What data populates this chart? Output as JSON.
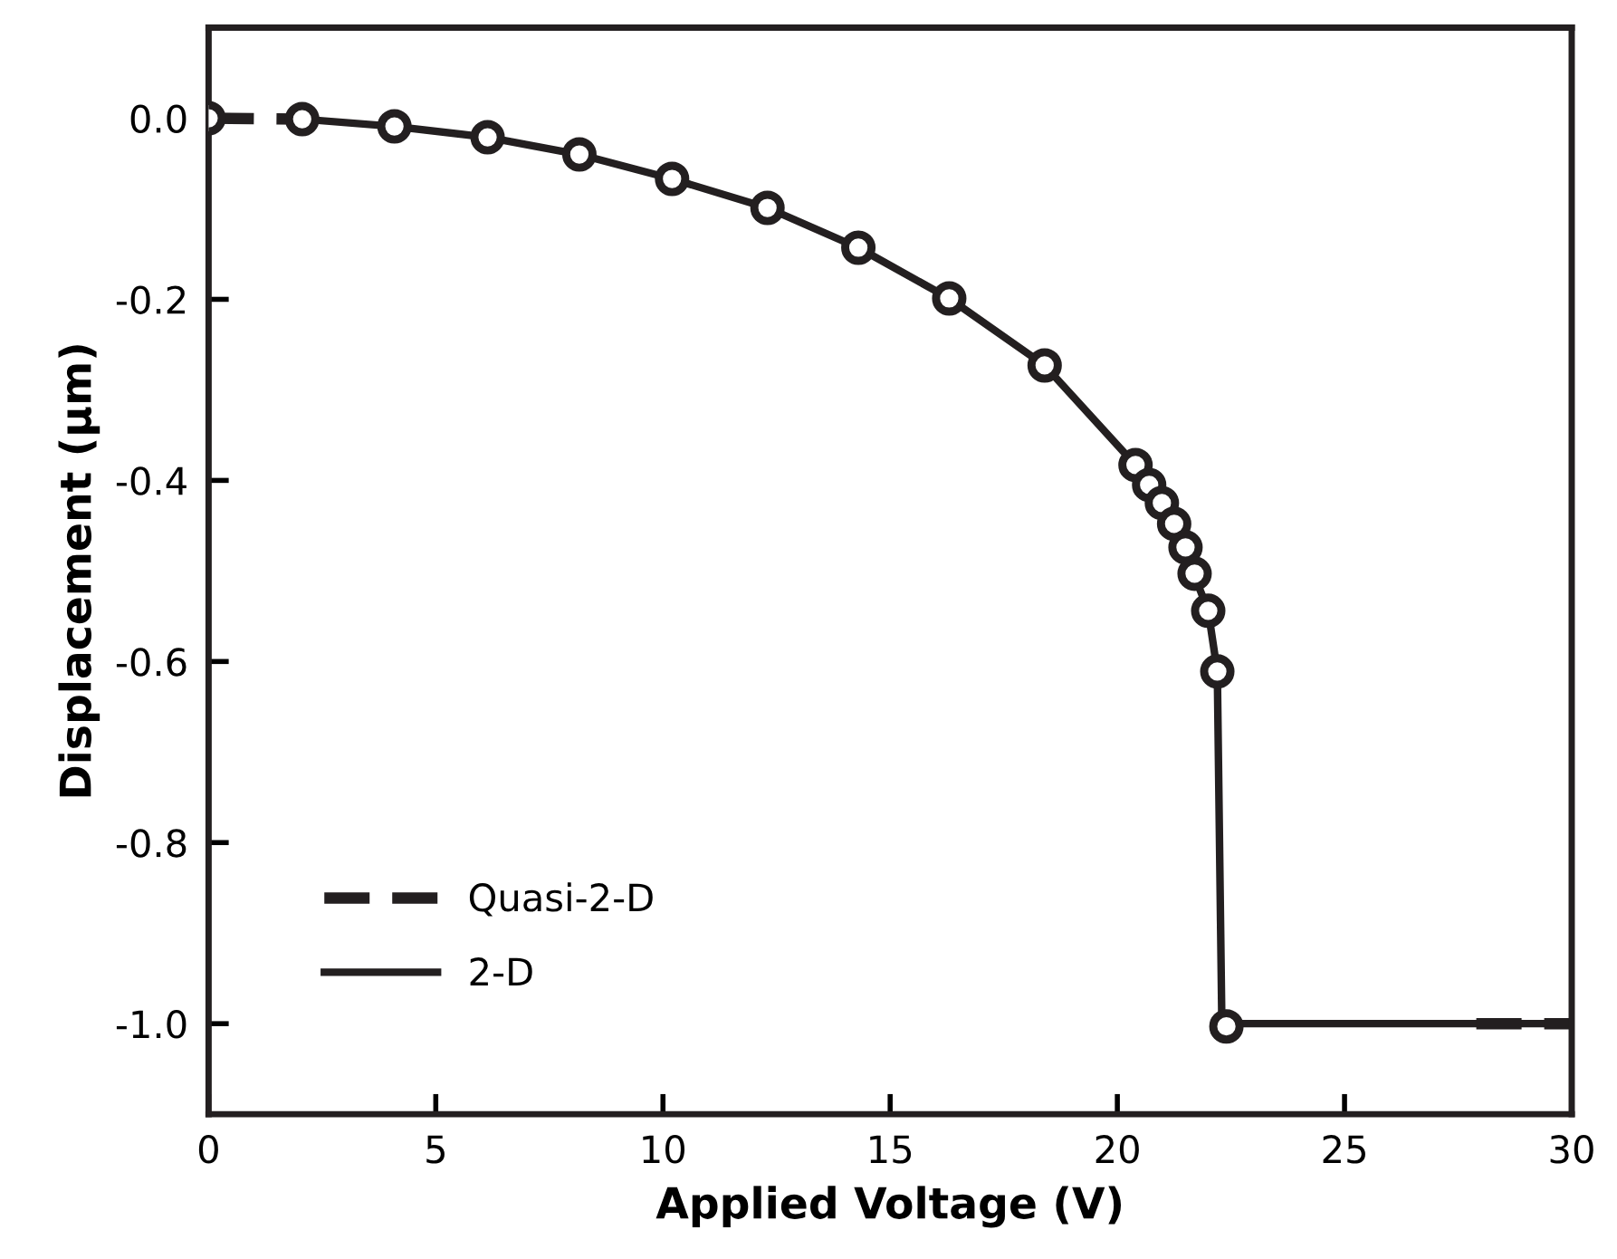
{
  "chart_data": {
    "type": "line",
    "xlabel": "Applied Voltage (V)",
    "ylabel": "Displacement (μm)",
    "xlim": [
      0,
      30
    ],
    "ylim": [
      -1.1,
      0.1
    ],
    "xticks": [
      0,
      5,
      10,
      15,
      20,
      25,
      30
    ],
    "yticks": [
      {
        "value": -1.0,
        "label": "-1.0"
      },
      {
        "value": -0.8,
        "label": "-0.8"
      },
      {
        "value": -0.6,
        "label": "-0.6"
      },
      {
        "value": -0.4,
        "label": "-0.4"
      },
      {
        "value": -0.2,
        "label": "-0.2"
      },
      {
        "value": 0.0,
        "label": "0.0"
      }
    ],
    "grid": false,
    "legend": "bottom left",
    "series": [
      {
        "type": "scatter",
        "marker": "circle",
        "color": "#231f20",
        "x": [
          0,
          2.06,
          4.09,
          6.14,
          8.16,
          10.2,
          12.3,
          14.3,
          16.3,
          18.4,
          20.4,
          20.7,
          20.98,
          21.25,
          21.5,
          21.7,
          22.0,
          22.2,
          22.4
        ],
        "values": [
          0.0,
          -0.001,
          -0.009,
          -0.021,
          -0.04,
          -0.067,
          -0.099,
          -0.143,
          -0.199,
          -0.273,
          -0.383,
          -0.405,
          -0.425,
          -0.448,
          -0.474,
          -0.503,
          -0.544,
          -0.611,
          -1.003
        ]
      },
      {
        "name": "Quasi-2-D",
        "line_style": "dashed",
        "color": "#231f20",
        "x": [
          0,
          2.06,
          10,
          27.9,
          30
        ],
        "values": [
          0.0,
          -0.001,
          null,
          -1.0,
          -1.0
        ]
      },
      {
        "name": "2-D",
        "line_style": "solid",
        "color": "#231f20",
        "x": [
          2.06,
          4.09,
          6.14,
          8.16,
          10.2,
          12.3,
          14.3,
          16.3,
          18.4,
          20.4,
          21.25,
          22.0,
          22.2,
          22.3,
          30
        ],
        "values": [
          -0.001,
          -0.009,
          -0.021,
          -0.04,
          -0.067,
          -0.099,
          -0.143,
          -0.199,
          -0.273,
          -0.383,
          -0.448,
          -0.544,
          -0.611,
          -1.0,
          -1.0
        ]
      }
    ]
  }
}
